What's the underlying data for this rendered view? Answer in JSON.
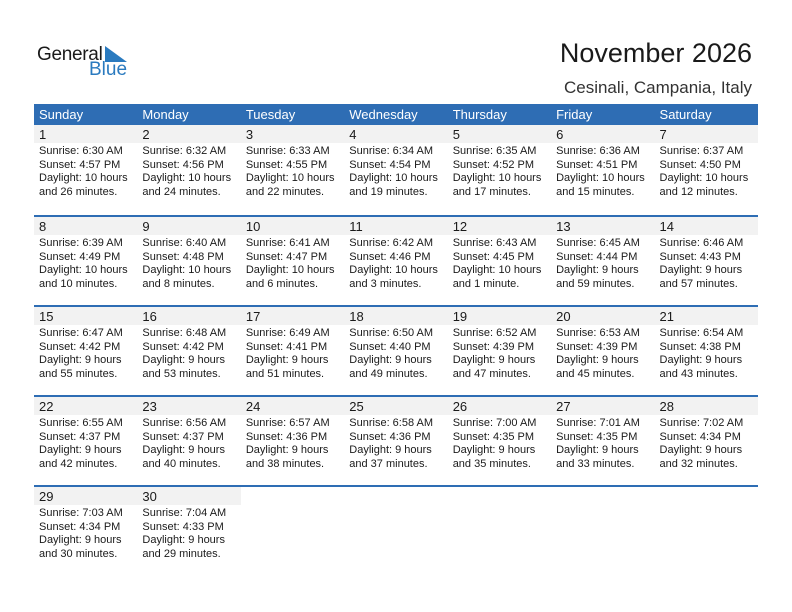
{
  "logo": {
    "text1": "General",
    "text2": "Blue",
    "color": "#2a7abf"
  },
  "title": "November 2026",
  "location": "Cesinali, Campania, Italy",
  "header_color": "#2e6db4",
  "days": [
    "Sunday",
    "Monday",
    "Tuesday",
    "Wednesday",
    "Thursday",
    "Friday",
    "Saturday"
  ],
  "weeks": [
    [
      {
        "day": "1",
        "sunrise": "Sunrise: 6:30 AM",
        "sunset": "Sunset: 4:57 PM",
        "daylight1": "Daylight: 10 hours",
        "daylight2": "and 26 minutes."
      },
      {
        "day": "2",
        "sunrise": "Sunrise: 6:32 AM",
        "sunset": "Sunset: 4:56 PM",
        "daylight1": "Daylight: 10 hours",
        "daylight2": "and 24 minutes."
      },
      {
        "day": "3",
        "sunrise": "Sunrise: 6:33 AM",
        "sunset": "Sunset: 4:55 PM",
        "daylight1": "Daylight: 10 hours",
        "daylight2": "and 22 minutes."
      },
      {
        "day": "4",
        "sunrise": "Sunrise: 6:34 AM",
        "sunset": "Sunset: 4:54 PM",
        "daylight1": "Daylight: 10 hours",
        "daylight2": "and 19 minutes."
      },
      {
        "day": "5",
        "sunrise": "Sunrise: 6:35 AM",
        "sunset": "Sunset: 4:52 PM",
        "daylight1": "Daylight: 10 hours",
        "daylight2": "and 17 minutes."
      },
      {
        "day": "6",
        "sunrise": "Sunrise: 6:36 AM",
        "sunset": "Sunset: 4:51 PM",
        "daylight1": "Daylight: 10 hours",
        "daylight2": "and 15 minutes."
      },
      {
        "day": "7",
        "sunrise": "Sunrise: 6:37 AM",
        "sunset": "Sunset: 4:50 PM",
        "daylight1": "Daylight: 10 hours",
        "daylight2": "and 12 minutes."
      }
    ],
    [
      {
        "day": "8",
        "sunrise": "Sunrise: 6:39 AM",
        "sunset": "Sunset: 4:49 PM",
        "daylight1": "Daylight: 10 hours",
        "daylight2": "and 10 minutes."
      },
      {
        "day": "9",
        "sunrise": "Sunrise: 6:40 AM",
        "sunset": "Sunset: 4:48 PM",
        "daylight1": "Daylight: 10 hours",
        "daylight2": "and 8 minutes."
      },
      {
        "day": "10",
        "sunrise": "Sunrise: 6:41 AM",
        "sunset": "Sunset: 4:47 PM",
        "daylight1": "Daylight: 10 hours",
        "daylight2": "and 6 minutes."
      },
      {
        "day": "11",
        "sunrise": "Sunrise: 6:42 AM",
        "sunset": "Sunset: 4:46 PM",
        "daylight1": "Daylight: 10 hours",
        "daylight2": "and 3 minutes."
      },
      {
        "day": "12",
        "sunrise": "Sunrise: 6:43 AM",
        "sunset": "Sunset: 4:45 PM",
        "daylight1": "Daylight: 10 hours",
        "daylight2": "and 1 minute."
      },
      {
        "day": "13",
        "sunrise": "Sunrise: 6:45 AM",
        "sunset": "Sunset: 4:44 PM",
        "daylight1": "Daylight: 9 hours",
        "daylight2": "and 59 minutes."
      },
      {
        "day": "14",
        "sunrise": "Sunrise: 6:46 AM",
        "sunset": "Sunset: 4:43 PM",
        "daylight1": "Daylight: 9 hours",
        "daylight2": "and 57 minutes."
      }
    ],
    [
      {
        "day": "15",
        "sunrise": "Sunrise: 6:47 AM",
        "sunset": "Sunset: 4:42 PM",
        "daylight1": "Daylight: 9 hours",
        "daylight2": "and 55 minutes."
      },
      {
        "day": "16",
        "sunrise": "Sunrise: 6:48 AM",
        "sunset": "Sunset: 4:42 PM",
        "daylight1": "Daylight: 9 hours",
        "daylight2": "and 53 minutes."
      },
      {
        "day": "17",
        "sunrise": "Sunrise: 6:49 AM",
        "sunset": "Sunset: 4:41 PM",
        "daylight1": "Daylight: 9 hours",
        "daylight2": "and 51 minutes."
      },
      {
        "day": "18",
        "sunrise": "Sunrise: 6:50 AM",
        "sunset": "Sunset: 4:40 PM",
        "daylight1": "Daylight: 9 hours",
        "daylight2": "and 49 minutes."
      },
      {
        "day": "19",
        "sunrise": "Sunrise: 6:52 AM",
        "sunset": "Sunset: 4:39 PM",
        "daylight1": "Daylight: 9 hours",
        "daylight2": "and 47 minutes."
      },
      {
        "day": "20",
        "sunrise": "Sunrise: 6:53 AM",
        "sunset": "Sunset: 4:39 PM",
        "daylight1": "Daylight: 9 hours",
        "daylight2": "and 45 minutes."
      },
      {
        "day": "21",
        "sunrise": "Sunrise: 6:54 AM",
        "sunset": "Sunset: 4:38 PM",
        "daylight1": "Daylight: 9 hours",
        "daylight2": "and 43 minutes."
      }
    ],
    [
      {
        "day": "22",
        "sunrise": "Sunrise: 6:55 AM",
        "sunset": "Sunset: 4:37 PM",
        "daylight1": "Daylight: 9 hours",
        "daylight2": "and 42 minutes."
      },
      {
        "day": "23",
        "sunrise": "Sunrise: 6:56 AM",
        "sunset": "Sunset: 4:37 PM",
        "daylight1": "Daylight: 9 hours",
        "daylight2": "and 40 minutes."
      },
      {
        "day": "24",
        "sunrise": "Sunrise: 6:57 AM",
        "sunset": "Sunset: 4:36 PM",
        "daylight1": "Daylight: 9 hours",
        "daylight2": "and 38 minutes."
      },
      {
        "day": "25",
        "sunrise": "Sunrise: 6:58 AM",
        "sunset": "Sunset: 4:36 PM",
        "daylight1": "Daylight: 9 hours",
        "daylight2": "and 37 minutes."
      },
      {
        "day": "26",
        "sunrise": "Sunrise: 7:00 AM",
        "sunset": "Sunset: 4:35 PM",
        "daylight1": "Daylight: 9 hours",
        "daylight2": "and 35 minutes."
      },
      {
        "day": "27",
        "sunrise": "Sunrise: 7:01 AM",
        "sunset": "Sunset: 4:35 PM",
        "daylight1": "Daylight: 9 hours",
        "daylight2": "and 33 minutes."
      },
      {
        "day": "28",
        "sunrise": "Sunrise: 7:02 AM",
        "sunset": "Sunset: 4:34 PM",
        "daylight1": "Daylight: 9 hours",
        "daylight2": "and 32 minutes."
      }
    ],
    [
      {
        "day": "29",
        "sunrise": "Sunrise: 7:03 AM",
        "sunset": "Sunset: 4:34 PM",
        "daylight1": "Daylight: 9 hours",
        "daylight2": "and 30 minutes."
      },
      {
        "day": "30",
        "sunrise": "Sunrise: 7:04 AM",
        "sunset": "Sunset: 4:33 PM",
        "daylight1": "Daylight: 9 hours",
        "daylight2": "and 29 minutes."
      },
      null,
      null,
      null,
      null,
      null
    ]
  ]
}
